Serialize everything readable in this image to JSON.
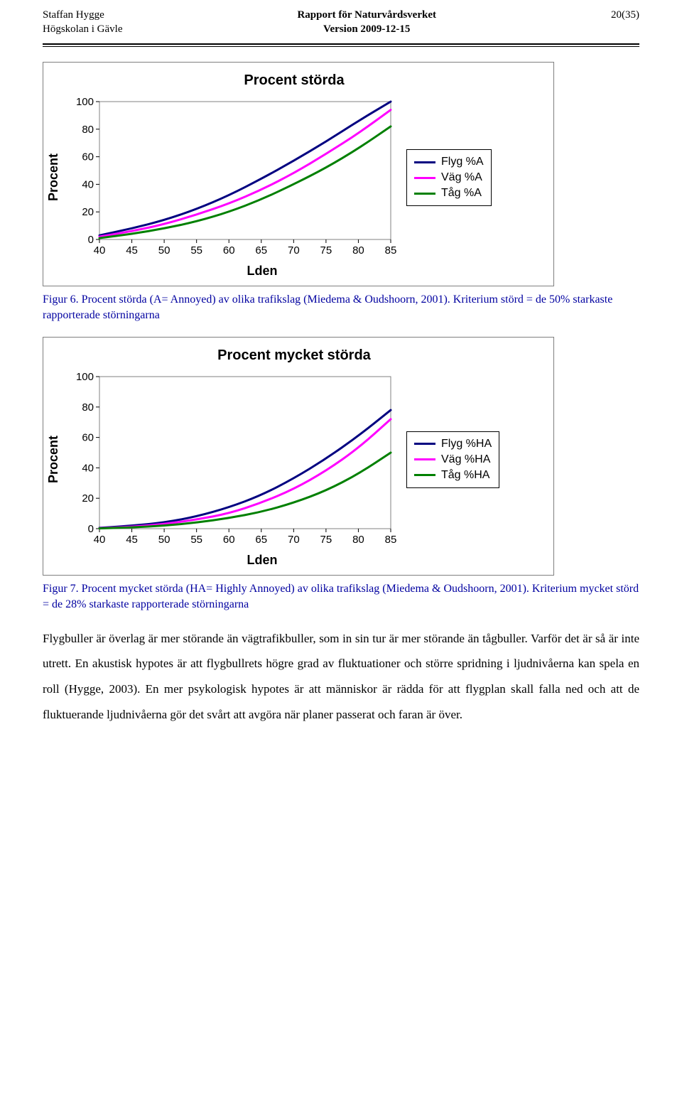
{
  "header": {
    "author": "Staffan Hygge",
    "institution": "Högskolan i Gävle",
    "report_for": "Rapport för Naturvårdsverket",
    "version": "Version 2009-12-15",
    "page_label": "20(35)"
  },
  "chart1": {
    "type": "line",
    "title": "Procent störda",
    "ylabel": "Procent",
    "xlabel": "Lden",
    "xlim": [
      40,
      85
    ],
    "ylim": [
      0,
      100
    ],
    "xticks": [
      40,
      45,
      50,
      55,
      60,
      65,
      70,
      75,
      80,
      85
    ],
    "yticks": [
      0,
      20,
      40,
      60,
      80,
      100
    ],
    "plot_area_bg": "#ffffff",
    "axis_color": "#808080",
    "font_family": "Arial",
    "tick_fontsize": 15,
    "title_fontsize": 20,
    "label_fontsize": 18,
    "line_width": 3,
    "series": [
      {
        "name": "Flyg %A",
        "color": "#000080",
        "x": [
          40,
          45,
          50,
          55,
          60,
          65,
          70,
          75,
          80,
          85
        ],
        "y": [
          3,
          8,
          14,
          22,
          32,
          44,
          57,
          71,
          86,
          100
        ]
      },
      {
        "name": "Väg %A",
        "color": "#ff00ff",
        "x": [
          40,
          45,
          50,
          55,
          60,
          65,
          70,
          75,
          80,
          85
        ],
        "y": [
          2,
          6,
          11,
          18,
          26,
          36,
          48,
          62,
          77,
          94
        ]
      },
      {
        "name": "Tåg %A",
        "color": "#008000",
        "x": [
          40,
          45,
          50,
          55,
          60,
          65,
          70,
          75,
          80,
          85
        ],
        "y": [
          1,
          4,
          8,
          13,
          20,
          29,
          40,
          52,
          66,
          82
        ]
      }
    ]
  },
  "caption1": "Figur 6. Procent störda (A= Annoyed) av olika trafikslag (Miedema & Oudshoorn, 2001). Kriterium störd = de 50% starkaste rapporterade störningarna",
  "chart2": {
    "type": "line",
    "title": "Procent mycket störda",
    "ylabel": "Procent",
    "xlabel": "Lden",
    "xlim": [
      40,
      85
    ],
    "ylim": [
      0,
      100
    ],
    "xticks": [
      40,
      45,
      50,
      55,
      60,
      65,
      70,
      75,
      80,
      85
    ],
    "yticks": [
      0,
      20,
      40,
      60,
      80,
      100
    ],
    "plot_area_bg": "#ffffff",
    "axis_color": "#808080",
    "font_family": "Arial",
    "tick_fontsize": 15,
    "title_fontsize": 20,
    "label_fontsize": 18,
    "line_width": 3,
    "series": [
      {
        "name": "Flyg %HA",
        "color": "#000080",
        "x": [
          40,
          45,
          50,
          55,
          60,
          65,
          70,
          75,
          80,
          85
        ],
        "y": [
          0.5,
          2,
          4,
          8,
          14,
          22,
          33,
          46,
          61,
          78
        ]
      },
      {
        "name": "Väg %HA",
        "color": "#ff00ff",
        "x": [
          40,
          45,
          50,
          55,
          60,
          65,
          70,
          75,
          80,
          85
        ],
        "y": [
          0.3,
          1.2,
          3,
          6,
          10,
          17,
          26,
          38,
          53,
          72
        ]
      },
      {
        "name": "Tåg %HA",
        "color": "#008000",
        "x": [
          40,
          45,
          50,
          55,
          60,
          65,
          70,
          75,
          80,
          85
        ],
        "y": [
          0.2,
          0.8,
          2,
          4,
          7,
          11,
          17,
          25,
          36,
          50
        ]
      }
    ]
  },
  "caption2": "Figur 7. Procent mycket störda (HA= Highly Annoyed) av olika trafikslag (Miedema & Oudshoorn, 2001). Kriterium mycket störd = de 28% starkaste rapporterade störningarna",
  "body": "Flygbuller är överlag är mer störande än vägtrafikbuller, som in sin tur är mer störande än tågbuller. Varför det är så är inte utrett. En akustisk hypotes är att flygbullrets högre grad av fluktuationer och större spridning i ljudnivåerna kan spela en roll (Hygge, 2003). En mer psykologisk hypotes är att människor är rädda för att flygplan skall falla ned och att de fluktuerande ljudnivåerna gör det svårt att avgöra när planer passerat och faran är över."
}
